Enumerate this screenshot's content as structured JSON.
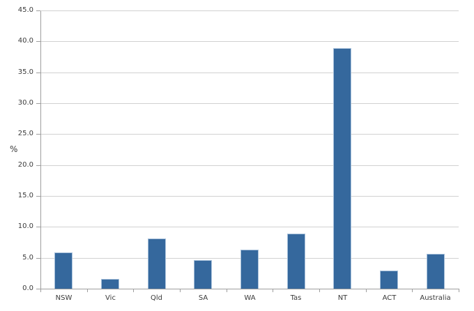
{
  "chart_data": {
    "type": "bar",
    "title": "",
    "xlabel": "",
    "ylabel": "%",
    "categories": [
      "NSW",
      "Vic",
      "Qld",
      "SA",
      "WA",
      "Tas",
      "NT",
      "ACT",
      "Australia"
    ],
    "values": [
      6.0,
      1.7,
      8.2,
      4.7,
      6.4,
      9.0,
      39.0,
      3.0,
      5.7
    ],
    "ylim": [
      0,
      45
    ],
    "ytick_step": 5,
    "ytick_decimals": 1,
    "grid": true,
    "legend": "none",
    "colors": {
      "bar_fill": "#35689D",
      "bar_border": "#A8C1DB",
      "gridline": "#D1D1D1",
      "axis": "#9E9E9E",
      "text": "#3A3A3A",
      "background": "#FFFFFF"
    }
  }
}
